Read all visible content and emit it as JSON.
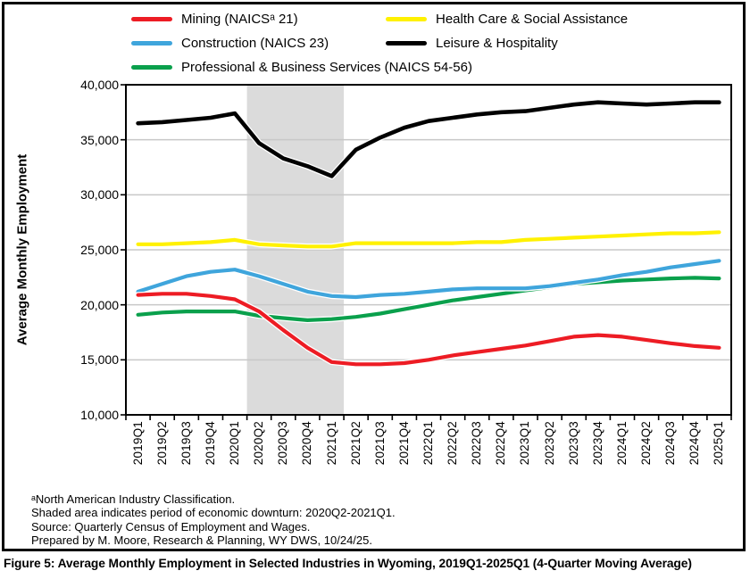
{
  "figure": {
    "caption": "Figure 5: Average Monthly Employment in Selected Industries in Wyoming, 2019Q1-2025Q1 (4-Quarter Moving Average)",
    "footnotes": [
      "ᵃNorth American Industry Classification.",
      "Shaded area indicates period of economic downturn: 2020Q2-2021Q1.",
      "Source: Quarterly Census of Employment and Wages.",
      "Prepared by M. Moore, Research & Planning, WY DWS, 10/24/25."
    ]
  },
  "legend": {
    "items": [
      {
        "label": "Mining (NAICSᵃ 21)",
        "color": "#ED1C24"
      },
      {
        "label": "Construction (NAICS 23)",
        "color": "#3FA5DC"
      },
      {
        "label": "Professional & Business Services (NAICS 54-56)",
        "color": "#0AA04C"
      },
      {
        "label": "Health Care & Social Assistance",
        "color": "#FFF100"
      },
      {
        "label": "Leisure & Hospitality",
        "color": "#000000"
      }
    ]
  },
  "chart_data": {
    "type": "line",
    "title": "",
    "xlabel": "",
    "ylabel": "Average Monthly Employment",
    "ylim": [
      10000,
      40000
    ],
    "ytick_step": 5000,
    "ytick_labels": [
      "40,000",
      "35,000",
      "30,000",
      "25,000",
      "20,000",
      "15,000",
      "10,000"
    ],
    "grid": true,
    "legend_position": "top",
    "categories": [
      "2019Q1",
      "2019Q2",
      "2019Q3",
      "2019Q4",
      "2020Q1",
      "2020Q2",
      "2020Q3",
      "2020Q4",
      "2021Q1",
      "2021Q2",
      "2021Q3",
      "2021Q4",
      "2022Q1",
      "2022Q2",
      "2022Q3",
      "2022Q4",
      "2023Q1",
      "2023Q2",
      "2023Q3",
      "2023Q4",
      "2024Q1",
      "2024Q2",
      "2024Q3",
      "2024Q4",
      "2025Q1"
    ],
    "shaded_region": {
      "from": "2020Q2",
      "to": "2021Q1",
      "color": "#DBDBDB"
    },
    "draw_order": [
      3,
      2,
      1,
      0,
      4
    ],
    "series": [
      {
        "name": "Mining (NAICSᵃ 21)",
        "color": "#ED1C24",
        "width": 4.2,
        "values": [
          20900,
          21000,
          21000,
          20800,
          20500,
          19400,
          17700,
          16100,
          14800,
          14600,
          14600,
          14700,
          15000,
          15400,
          15700,
          16000,
          16300,
          16700,
          17100,
          17250,
          17100,
          16800,
          16500,
          16250,
          16100
        ]
      },
      {
        "name": "Construction (NAICS 23)",
        "color": "#3FA5DC",
        "width": 4.2,
        "values": [
          21200,
          21900,
          22600,
          23000,
          23200,
          22600,
          21900,
          21200,
          20800,
          20700,
          20900,
          21000,
          21200,
          21400,
          21500,
          21500,
          21500,
          21700,
          22000,
          22300,
          22700,
          23000,
          23400,
          23700,
          24000
        ]
      },
      {
        "name": "Professional & Business Services (NAICS 54-56)",
        "color": "#0AA04C",
        "width": 4.2,
        "values": [
          19100,
          19300,
          19400,
          19400,
          19400,
          19000,
          18800,
          18600,
          18700,
          18900,
          19200,
          19600,
          20000,
          20400,
          20700,
          21000,
          21300,
          21600,
          21900,
          22050,
          22200,
          22300,
          22400,
          22450,
          22400
        ]
      },
      {
        "name": "Health Care & Social Assistance",
        "color": "#FFF100",
        "width": 4.2,
        "values": [
          25500,
          25500,
          25600,
          25700,
          25900,
          25500,
          25400,
          25300,
          25300,
          25600,
          25600,
          25600,
          25600,
          25600,
          25700,
          25700,
          25900,
          26000,
          26100,
          26200,
          26300,
          26400,
          26500,
          26500,
          26600
        ]
      },
      {
        "name": "Leisure & Hospitality",
        "color": "#000000",
        "width": 4.6,
        "values": [
          36500,
          36600,
          36800,
          37000,
          37400,
          34700,
          33300,
          32600,
          31700,
          34100,
          35200,
          36100,
          36700,
          37000,
          37300,
          37500,
          37600,
          37900,
          38200,
          38400,
          38300,
          38200,
          38300,
          38400,
          38400
        ]
      }
    ]
  }
}
